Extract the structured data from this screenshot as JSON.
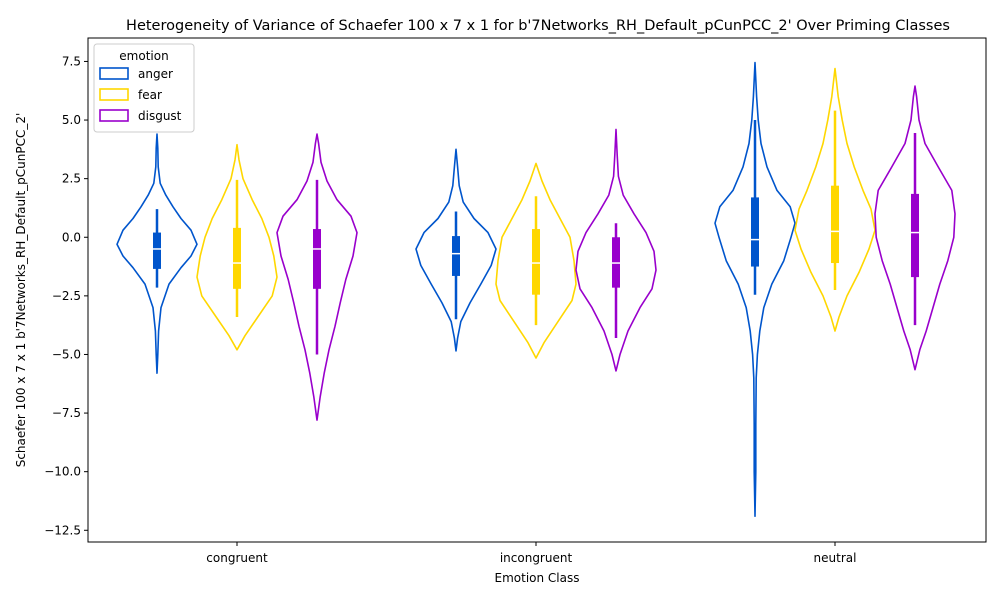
{
  "chart_data": {
    "type": "violin",
    "title": "Heterogeneity of Variance of Schaefer 100 x 7 x 1 for b'7Networks_RH_Default_pCunPCC_2' Over Priming Classes",
    "xlabel": "Emotion Class",
    "ylabel": "Schaefer 100 x 7 x 1 b'7Networks_RH_Default_pCunPCC_2'",
    "categories": [
      "congruent",
      "incongruent",
      "neutral"
    ],
    "ylim": [
      -13.0,
      8.5
    ],
    "yticks": [
      -12.5,
      -10.0,
      -7.5,
      -5.0,
      -2.5,
      0.0,
      2.5,
      5.0,
      7.5
    ],
    "ytick_labels": [
      "−12.5",
      "−10.0",
      "−7.5",
      "−5.0",
      "−2.5",
      "0.0",
      "2.5",
      "5.0",
      "7.5"
    ],
    "legend": {
      "title": "emotion",
      "placement": "top-left"
    },
    "series": [
      {
        "name": "anger",
        "color": "#0055cc",
        "groups": [
          {
            "category": "congruent",
            "min": -5.8,
            "max": 4.4,
            "q1": -1.35,
            "median": -0.5,
            "q3": 0.2,
            "whisker_low": -2.15,
            "whisker_high": 1.2,
            "profile": [
              [
                -5.8,
                0.0
              ],
              [
                -5.0,
                0.02
              ],
              [
                -4.0,
                0.04
              ],
              [
                -3.0,
                0.1
              ],
              [
                -2.0,
                0.3
              ],
              [
                -1.3,
                0.6
              ],
              [
                -0.8,
                0.85
              ],
              [
                -0.3,
                1.0
              ],
              [
                0.3,
                0.85
              ],
              [
                0.8,
                0.6
              ],
              [
                1.3,
                0.4
              ],
              [
                1.8,
                0.22
              ],
              [
                2.3,
                0.08
              ],
              [
                3.0,
                0.03
              ],
              [
                3.8,
                0.02
              ],
              [
                4.4,
                0.0
              ]
            ]
          },
          {
            "category": "incongruent",
            "min": -4.85,
            "max": 3.75,
            "q1": -1.65,
            "median": -0.7,
            "q3": 0.05,
            "whisker_low": -3.5,
            "whisker_high": 1.1,
            "profile": [
              [
                -4.85,
                0.0
              ],
              [
                -4.3,
                0.04
              ],
              [
                -3.6,
                0.12
              ],
              [
                -2.8,
                0.35
              ],
              [
                -2.0,
                0.62
              ],
              [
                -1.2,
                0.88
              ],
              [
                -0.5,
                1.0
              ],
              [
                0.2,
                0.8
              ],
              [
                0.8,
                0.45
              ],
              [
                1.5,
                0.18
              ],
              [
                2.2,
                0.08
              ],
              [
                3.0,
                0.04
              ],
              [
                3.75,
                0.0
              ]
            ]
          },
          {
            "category": "neutral",
            "min": -11.9,
            "max": 7.45,
            "q1": -1.25,
            "median": -0.1,
            "q3": 1.7,
            "whisker_low": -2.45,
            "whisker_high": 5.0,
            "profile": [
              [
                -11.9,
                0.0
              ],
              [
                -10.0,
                0.02
              ],
              [
                -8.0,
                0.02
              ],
              [
                -6.0,
                0.03
              ],
              [
                -5.0,
                0.06
              ],
              [
                -4.0,
                0.12
              ],
              [
                -3.0,
                0.22
              ],
              [
                -2.0,
                0.42
              ],
              [
                -1.0,
                0.72
              ],
              [
                0.0,
                0.9
              ],
              [
                0.6,
                1.0
              ],
              [
                1.3,
                0.88
              ],
              [
                2.0,
                0.55
              ],
              [
                3.0,
                0.3
              ],
              [
                4.0,
                0.15
              ],
              [
                5.0,
                0.08
              ],
              [
                6.0,
                0.04
              ],
              [
                7.45,
                0.0
              ]
            ]
          }
        ]
      },
      {
        "name": "fear",
        "color": "#ffd700",
        "groups": [
          {
            "category": "congruent",
            "min": -4.8,
            "max": 3.95,
            "q1": -2.2,
            "median": -1.1,
            "q3": 0.4,
            "whisker_low": -3.4,
            "whisker_high": 2.45,
            "profile": [
              [
                -4.8,
                0.0
              ],
              [
                -4.2,
                0.2
              ],
              [
                -3.4,
                0.52
              ],
              [
                -2.5,
                0.88
              ],
              [
                -1.7,
                1.0
              ],
              [
                -0.8,
                0.92
              ],
              [
                0.0,
                0.8
              ],
              [
                0.8,
                0.62
              ],
              [
                1.6,
                0.38
              ],
              [
                2.5,
                0.15
              ],
              [
                3.3,
                0.05
              ],
              [
                3.95,
                0.0
              ]
            ]
          },
          {
            "category": "incongruent",
            "min": -5.15,
            "max": 3.15,
            "q1": -2.45,
            "median": -1.1,
            "q3": 0.35,
            "whisker_low": -3.75,
            "whisker_high": 1.75,
            "profile": [
              [
                -5.15,
                0.0
              ],
              [
                -4.5,
                0.2
              ],
              [
                -3.6,
                0.55
              ],
              [
                -2.7,
                0.9
              ],
              [
                -2.0,
                1.0
              ],
              [
                -1.0,
                0.95
              ],
              [
                0.0,
                0.85
              ],
              [
                0.8,
                0.6
              ],
              [
                1.6,
                0.35
              ],
              [
                2.4,
                0.15
              ],
              [
                3.15,
                0.0
              ]
            ]
          },
          {
            "category": "neutral",
            "min": -4.0,
            "max": 7.2,
            "q1": -1.1,
            "median": 0.25,
            "q3": 2.2,
            "whisker_low": -2.25,
            "whisker_high": 5.4,
            "profile": [
              [
                -4.0,
                0.0
              ],
              [
                -3.4,
                0.1
              ],
              [
                -2.5,
                0.3
              ],
              [
                -1.5,
                0.6
              ],
              [
                -0.5,
                0.85
              ],
              [
                0.3,
                1.0
              ],
              [
                1.2,
                0.9
              ],
              [
                2.0,
                0.7
              ],
              [
                3.0,
                0.48
              ],
              [
                4.0,
                0.3
              ],
              [
                5.0,
                0.18
              ],
              [
                6.0,
                0.08
              ],
              [
                7.2,
                0.0
              ]
            ]
          }
        ]
      },
      {
        "name": "disgust",
        "color": "#9900cc",
        "groups": [
          {
            "category": "congruent",
            "min": -7.8,
            "max": 4.4,
            "q1": -2.2,
            "median": -0.5,
            "q3": 0.35,
            "whisker_low": -5.0,
            "whisker_high": 2.45,
            "profile": [
              [
                -7.8,
                0.0
              ],
              [
                -6.8,
                0.08
              ],
              [
                -5.8,
                0.18
              ],
              [
                -4.8,
                0.3
              ],
              [
                -3.8,
                0.45
              ],
              [
                -2.8,
                0.58
              ],
              [
                -1.8,
                0.72
              ],
              [
                -0.8,
                0.9
              ],
              [
                0.2,
                1.0
              ],
              [
                0.9,
                0.85
              ],
              [
                1.6,
                0.5
              ],
              [
                2.4,
                0.25
              ],
              [
                3.2,
                0.1
              ],
              [
                4.0,
                0.04
              ],
              [
                4.4,
                0.0
              ]
            ]
          },
          {
            "category": "incongruent",
            "min": -5.7,
            "max": 4.6,
            "q1": -2.15,
            "median": -1.1,
            "q3": 0.0,
            "whisker_low": -4.3,
            "whisker_high": 0.6,
            "profile": [
              [
                -5.7,
                0.0
              ],
              [
                -5.0,
                0.1
              ],
              [
                -4.0,
                0.3
              ],
              [
                -3.0,
                0.6
              ],
              [
                -2.2,
                0.9
              ],
              [
                -1.4,
                1.0
              ],
              [
                -0.6,
                0.95
              ],
              [
                0.2,
                0.75
              ],
              [
                1.0,
                0.45
              ],
              [
                1.8,
                0.18
              ],
              [
                2.6,
                0.06
              ],
              [
                3.5,
                0.03
              ],
              [
                4.6,
                0.0
              ]
            ]
          },
          {
            "category": "neutral",
            "min": -5.65,
            "max": 6.45,
            "q1": -1.7,
            "median": 0.2,
            "q3": 1.85,
            "whisker_low": -3.75,
            "whisker_high": 4.45,
            "profile": [
              [
                -5.65,
                0.0
              ],
              [
                -4.8,
                0.12
              ],
              [
                -4.0,
                0.28
              ],
              [
                -3.0,
                0.45
              ],
              [
                -2.0,
                0.62
              ],
              [
                -1.0,
                0.82
              ],
              [
                0.0,
                0.97
              ],
              [
                1.0,
                1.0
              ],
              [
                2.0,
                0.92
              ],
              [
                3.0,
                0.58
              ],
              [
                4.0,
                0.25
              ],
              [
                5.0,
                0.1
              ],
              [
                6.0,
                0.04
              ],
              [
                6.45,
                0.0
              ]
            ]
          }
        ]
      }
    ]
  }
}
